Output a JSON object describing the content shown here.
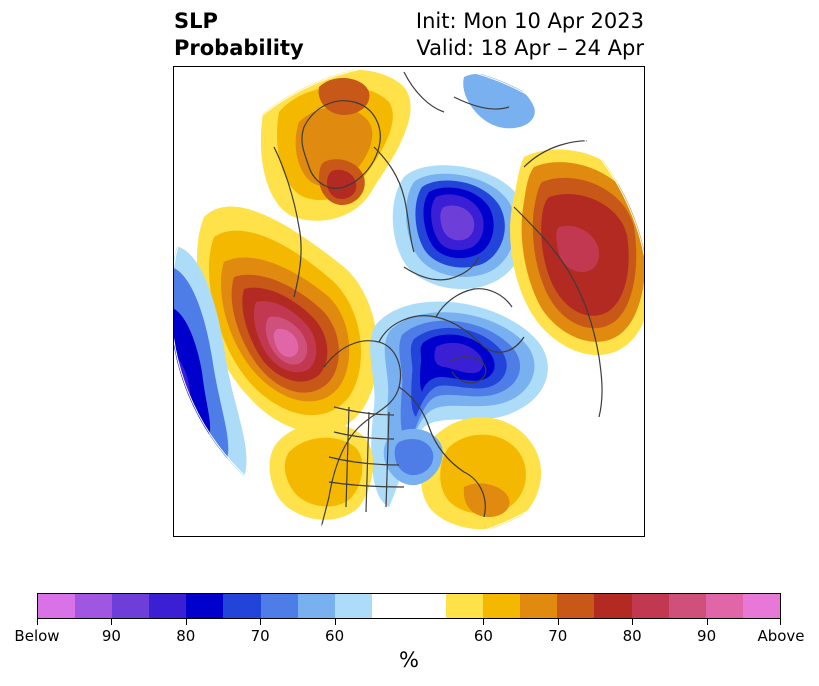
{
  "title": {
    "left_line1": "SLP",
    "left_line2": "Probability",
    "right_line1": "Init: Mon 10 Apr 2023",
    "right_line2": "Valid: 18 Apr – 24 Apr"
  },
  "colorbar": {
    "unit": "%",
    "colors": [
      "#d872e6",
      "#a056e0",
      "#6e3ed8",
      "#3a1fd4",
      "#0000cd",
      "#2244d8",
      "#4f7de8",
      "#78b0f0",
      "#addcf9",
      "#ffffff",
      "#ffffff",
      "#ffe14a",
      "#f5b800",
      "#e08a10",
      "#c85818",
      "#b22a22",
      "#c23850",
      "#d0507c",
      "#e066a8",
      "#e878d8"
    ],
    "tick_labels": [
      "Below",
      "90",
      "80",
      "70",
      "60",
      "60",
      "70",
      "80",
      "90",
      "Above"
    ]
  },
  "map": {
    "background": "#ffffff",
    "coast_color": "#3c3c3c"
  }
}
